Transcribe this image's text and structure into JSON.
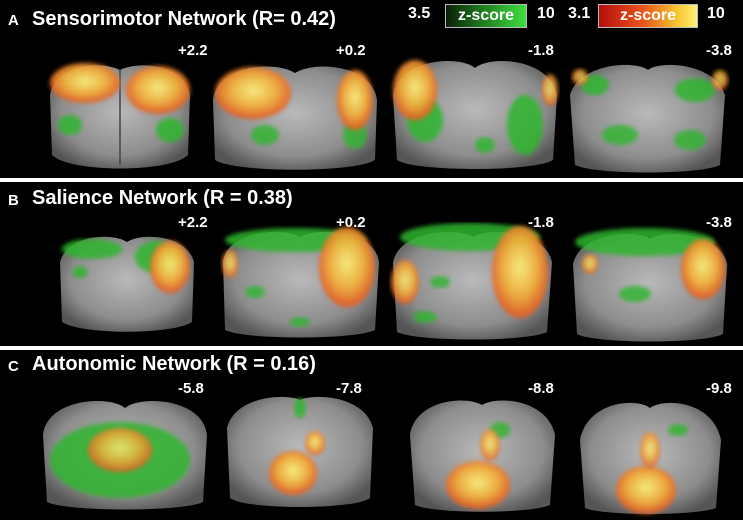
{
  "colorbars": {
    "green": {
      "min": "3.5",
      "label": "z-score",
      "max": "10",
      "colors": [
        "#0b1f0b",
        "#3fe03f"
      ]
    },
    "red": {
      "min": "3.1",
      "label": "z-score",
      "max": "10",
      "colors": [
        "#b50d0d",
        "#fff176"
      ]
    }
  },
  "panels": [
    {
      "letter": "A",
      "title": "Sensorimotor Network (R= 0.42)",
      "coords": [
        "+2.2",
        "+0.2",
        "-1.8",
        "-3.8"
      ]
    },
    {
      "letter": "B",
      "title": "Salience Network (R = 0.38)",
      "coords": [
        "+2.2",
        "+0.2",
        "-1.8",
        "-3.8"
      ]
    },
    {
      "letter": "C",
      "title": "Autonomic Network (R = 0.16)",
      "coords": [
        "-5.8",
        "-7.8",
        "-8.8",
        "-9.8"
      ]
    }
  ],
  "colors": {
    "brain": "#8a8a8a",
    "green_map": "#2fb52f",
    "hot_map": "#f08a22"
  }
}
